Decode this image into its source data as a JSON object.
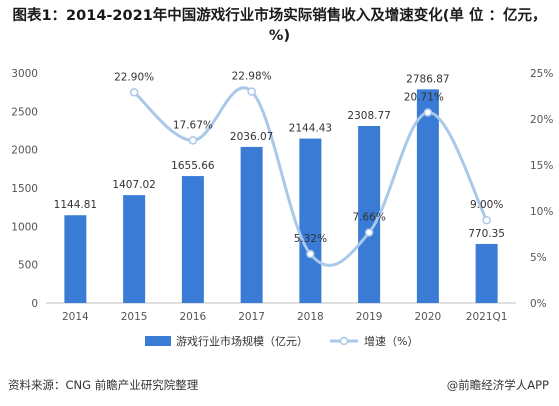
{
  "header": {
    "title": "图表1：2014-2021年中国游戏行业市场实际销售收入及增速变化(单 位 ：亿元，%)"
  },
  "footer": {
    "source": "资料来源：CNG 前瞻产业研究院整理",
    "credit": "@前瞻经济学人APP"
  },
  "chart_data": {
    "type": "bar",
    "categories": [
      "2014",
      "2015",
      "2016",
      "2017",
      "2018",
      "2019",
      "2020",
      "2021Q1"
    ],
    "series": [
      {
        "name": "游戏行业市场规模（亿元）",
        "type": "bar",
        "axis": "left",
        "color": "#3a7bd5",
        "values": [
          1144.81,
          1407.02,
          1655.66,
          2036.07,
          2144.43,
          2308.77,
          2786.87,
          770.35
        ],
        "labels": [
          "1144.81",
          "1407.02",
          "1655.66",
          "2036.07",
          "2144.43",
          "2308.77",
          "2786.87",
          "770.35"
        ]
      },
      {
        "name": "增速（%）",
        "type": "line",
        "axis": "right",
        "color": "#a9c8ea",
        "values": [
          null,
          22.9,
          17.67,
          22.98,
          5.32,
          7.66,
          20.71,
          9.0
        ],
        "labels": [
          "",
          "22.90%",
          "17.67%",
          "22.98%",
          "5.32%",
          "7.66%",
          "20.71%",
          "9.00%"
        ]
      }
    ],
    "y_left": {
      "min": 0,
      "max": 3000,
      "ticks": [
        "0",
        "500",
        "1000",
        "1500",
        "2000",
        "2500",
        "3000"
      ]
    },
    "y_right": {
      "min": 0,
      "max": 25,
      "ticks": [
        "0%",
        "5%",
        "10%",
        "15%",
        "20%",
        "25%"
      ]
    },
    "grid": false,
    "legend_position": "bottom"
  }
}
